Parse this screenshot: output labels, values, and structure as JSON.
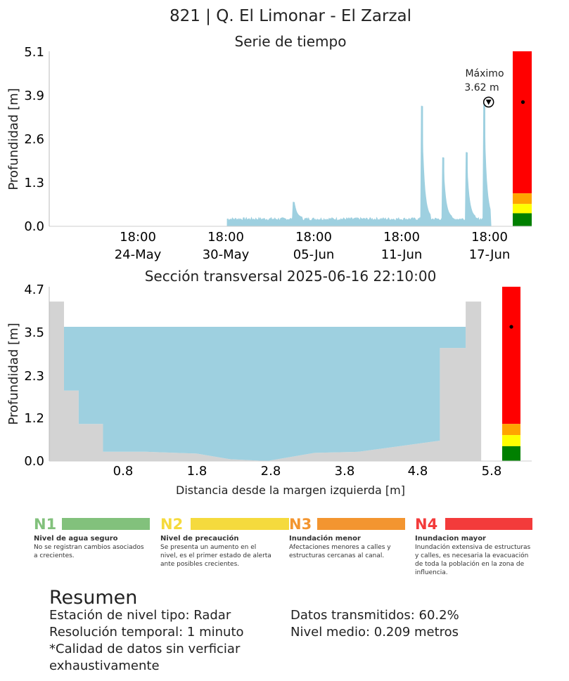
{
  "title": "821 | Q. El Limonar - El Zarzal",
  "timeseries": {
    "subtitle": "Serie de tiempo",
    "ylabel": "Profundidad [m]",
    "yticks": [
      "0.0",
      "1.3",
      "2.6",
      "3.9",
      "5.1"
    ],
    "xticks": [
      {
        "time": "18:00",
        "date": "24-May"
      },
      {
        "time": "18:00",
        "date": "30-May"
      },
      {
        "time": "18:00",
        "date": "05-Jun"
      },
      {
        "time": "18:00",
        "date": "11-Jun"
      },
      {
        "time": "18:00",
        "date": "17-Jun"
      }
    ],
    "annotation": {
      "label": "Máximo",
      "value_text": "3.62 m"
    }
  },
  "section": {
    "subtitle": "Sección transversal 2025-06-16 22:10:00",
    "ylabel": "Profundidad [m]",
    "xlabel": "Distancia desde la margen izquierda [m]",
    "yticks": [
      "0.0",
      "1.2",
      "2.3",
      "3.5",
      "4.7"
    ],
    "xticks": [
      "0.8",
      "1.8",
      "2.8",
      "3.8",
      "4.8",
      "5.8"
    ]
  },
  "levels": [
    {
      "code": "N1",
      "color": "#82c17c",
      "name": "Nivel de agua seguro",
      "desc": "No se registran cambios asociados a crecientes."
    },
    {
      "code": "N2",
      "color": "#f5da3d",
      "name": "Nivel de precaución",
      "desc": "Se presenta un aumento en el nivel, es el primer estado de alerta ante posibles crecientes."
    },
    {
      "code": "N3",
      "color": "#f39530",
      "name": "Inundación menor",
      "desc": "Afectaciones menores a calles y estructuras cercanas al canal."
    },
    {
      "code": "N4",
      "color": "#f33b3b",
      "name": "Inundacion mayor",
      "desc": "Inundación extensiva de estructuras y calles, es necesaria la evacuación de toda la población en la zona de influencia."
    }
  ],
  "summary": {
    "title": "Resumen",
    "station": "Estación de nivel tipo: Radar",
    "resolution": "Resolución temporal: 1 minuto",
    "quality": "*Calidad de datos sin verficiar exhaustivamente",
    "transmitted": "Datos transmitidos: 60.2%",
    "mean_level": "Nivel medio: 0.209 metros"
  },
  "colors": {
    "water": "#9ed0e0",
    "terrain": "#d3d3d3",
    "green": "#008000",
    "yellow": "#ffff00",
    "orange": "#ffa500",
    "red": "#ff0000"
  },
  "chart_data": [
    {
      "type": "area",
      "subtitle": "Serie de tiempo",
      "ylabel": "Profundidad [m]",
      "ylim": [
        0,
        5.1
      ],
      "x_unit": "days since 2025-05-21 00:00",
      "xlim": [
        0,
        29.6
      ],
      "base_level": 0.22,
      "baseline_start": 9.85,
      "baseline_end": 27.85,
      "spikes": [
        {
          "x": 14.4,
          "y": 0.7
        },
        {
          "x": 23.15,
          "y": 3.5
        },
        {
          "x": 24.6,
          "y": 2.0
        },
        {
          "x": 26.2,
          "y": 2.15
        },
        {
          "x": 27.4,
          "y": 3.62
        }
      ],
      "max": {
        "x": 27.4,
        "y": 3.62
      },
      "alert_levels": [
        0.38,
        0.65,
        0.96
      ],
      "grid": false
    },
    {
      "type": "area",
      "subtitle": "Sección transversal 2025-06-16 22:10:00",
      "xlabel": "Distancia desde la margen izquierda [m]",
      "ylabel": "Profundidad [m]",
      "xlim": [
        0,
        6.35
      ],
      "ylim": [
        0,
        4.7
      ],
      "water_level": 3.62,
      "terrain": [
        [
          0,
          4.3
        ],
        [
          0.2,
          4.3
        ],
        [
          0.2,
          1.9
        ],
        [
          0.4,
          1.9
        ],
        [
          0.4,
          1.0
        ],
        [
          0.73,
          1.0
        ],
        [
          0.73,
          0.25
        ],
        [
          1.3,
          0.25
        ],
        [
          2.0,
          0.2
        ],
        [
          2.45,
          0.05
        ],
        [
          2.95,
          0.0
        ],
        [
          3.6,
          0.22
        ],
        [
          4.2,
          0.25
        ],
        [
          5.3,
          0.55
        ],
        [
          5.3,
          3.05
        ],
        [
          5.65,
          3.05
        ],
        [
          5.65,
          4.3
        ],
        [
          5.86,
          4.3
        ]
      ],
      "alert_levels": [
        0.4,
        0.7,
        1.0
      ],
      "grid": false
    }
  ]
}
